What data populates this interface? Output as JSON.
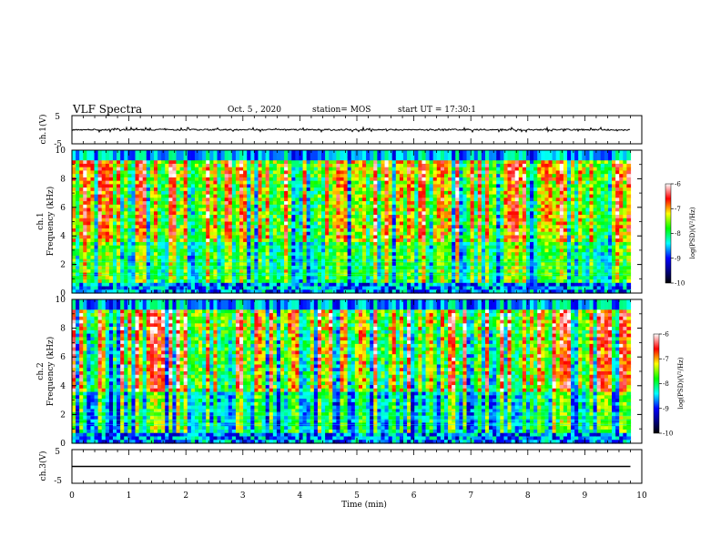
{
  "header": {
    "title": "VLF Spectra",
    "date": "Oct. 5 , 2020",
    "station": "station= MOS",
    "start": "start UT = 17:30:1"
  },
  "colors": {
    "colormap": [
      "#ffffff",
      "#ff0000",
      "#ffff00",
      "#00ff00",
      "#00ffff",
      "#0000ff",
      "#000060",
      "#000000"
    ],
    "waveform": "#000000"
  },
  "chart_data": [
    {
      "type": "line",
      "panel": "ch1-waveform",
      "ylabel": "ch.1(V)",
      "ylim": [
        -5,
        5
      ],
      "yticks": [
        "5",
        "-5"
      ],
      "xlim": [
        0,
        10
      ],
      "trace_start_min": 0,
      "trace_end_min": 9.8,
      "values_approx": "near 0 V with small spikes"
    },
    {
      "type": "heatmap",
      "panel": "ch1-spectrogram",
      "ylabel": "ch.1\nFrequency (kHz)",
      "ylabel_top": "ch.1",
      "ylabel_bottom": "Frequency (kHz)",
      "ylim": [
        0,
        10
      ],
      "yticks": [
        "0",
        "2",
        "4",
        "6",
        "8",
        "10"
      ],
      "xlim": [
        0,
        10
      ],
      "data_end_min": 9.8,
      "colorbar": {
        "label": "log(PSD)(V²/Hz)",
        "range": [
          -10,
          -6
        ],
        "ticks": [
          "-6",
          "-7",
          "-8",
          "-9",
          "-10"
        ]
      }
    },
    {
      "type": "heatmap",
      "panel": "ch2-spectrogram",
      "ylabel": "ch.2\nFrequency (kHz)",
      "ylabel_top": "ch.2",
      "ylabel_bottom": "Frequency (kHz)",
      "ylim": [
        0,
        10
      ],
      "yticks": [
        "0",
        "2",
        "4",
        "6",
        "8",
        "10"
      ],
      "xlim": [
        0,
        10
      ],
      "data_end_min": 9.8,
      "colorbar": {
        "label": "log(PSD)(V²/Hz)",
        "range": [
          -10,
          -6
        ],
        "ticks": [
          "-6",
          "-7",
          "-8",
          "-9",
          "-10"
        ]
      }
    },
    {
      "type": "line",
      "panel": "ch3-waveform",
      "ylabel": "ch.3(V)",
      "ylim": [
        -5,
        5
      ],
      "yticks": [
        "5",
        "-5"
      ],
      "xlim": [
        0,
        10
      ],
      "trace_start_min": 0,
      "trace_end_min": 9.8,
      "values_approx": "near 0 V, flat"
    }
  ],
  "xaxis": {
    "label": "Time (min)",
    "ticks": [
      "0",
      "1",
      "2",
      "3",
      "4",
      "5",
      "6",
      "7",
      "8",
      "9",
      "10"
    ]
  }
}
